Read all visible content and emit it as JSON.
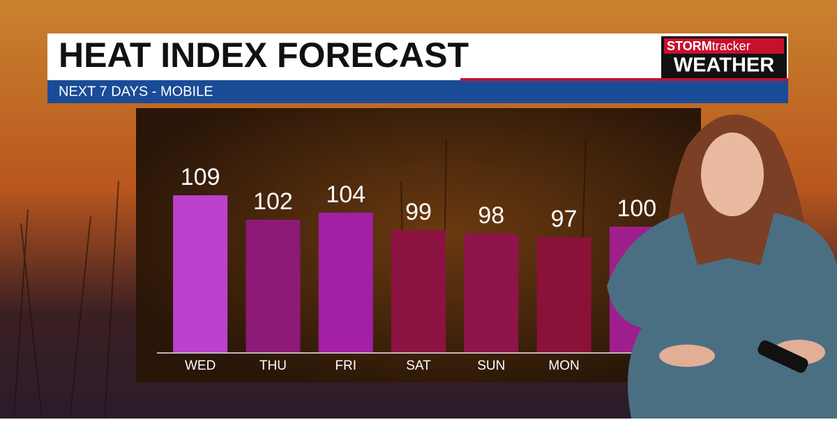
{
  "chart_data": {
    "type": "bar",
    "title": "HEAT INDEX FORECAST",
    "subtitle": "NEXT 7 DAYS - MOBILE",
    "categories": [
      "WED",
      "THU",
      "FRI",
      "SAT",
      "SUN",
      "MON",
      null
    ],
    "values": [
      109,
      102,
      104,
      99,
      98,
      97,
      100
    ],
    "colors": [
      "#bb42cc",
      "#8c1a76",
      "#a21fa6",
      "#8b1342",
      "#8e1449",
      "#8a1238",
      "#9e1f8c"
    ],
    "ylim": [
      64,
      133
    ]
  },
  "logo": {
    "brand": "STORM",
    "brand_suffix": "tracker",
    "line2": "WEATHER"
  }
}
